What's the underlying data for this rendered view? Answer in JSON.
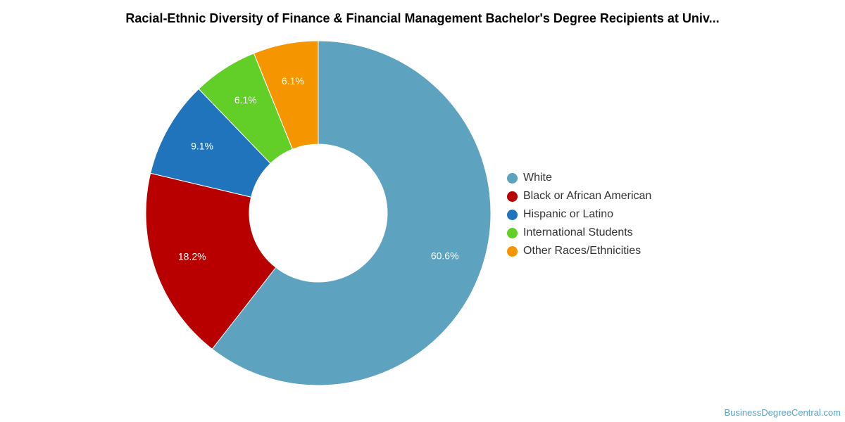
{
  "chart_data": {
    "type": "pie",
    "variant": "donut",
    "title": "Racial-Ethnic Diversity of Finance & Financial Management Bachelor's Degree Recipients at Univ...",
    "categories": [
      "White",
      "Black or African American",
      "Hispanic or Latino",
      "International Students",
      "Other Races/Ethnicities"
    ],
    "values": [
      60.6,
      18.2,
      9.1,
      6.1,
      6.1
    ],
    "value_labels": [
      "60.6%",
      "18.2%",
      "9.1%",
      "6.1%",
      "6.1%"
    ],
    "colors": [
      "#5da2be",
      "#b80000",
      "#1f74bb",
      "#62cf28",
      "#f59600"
    ],
    "legend_position": "right"
  },
  "watermark": "BusinessDegreeCentral.com"
}
